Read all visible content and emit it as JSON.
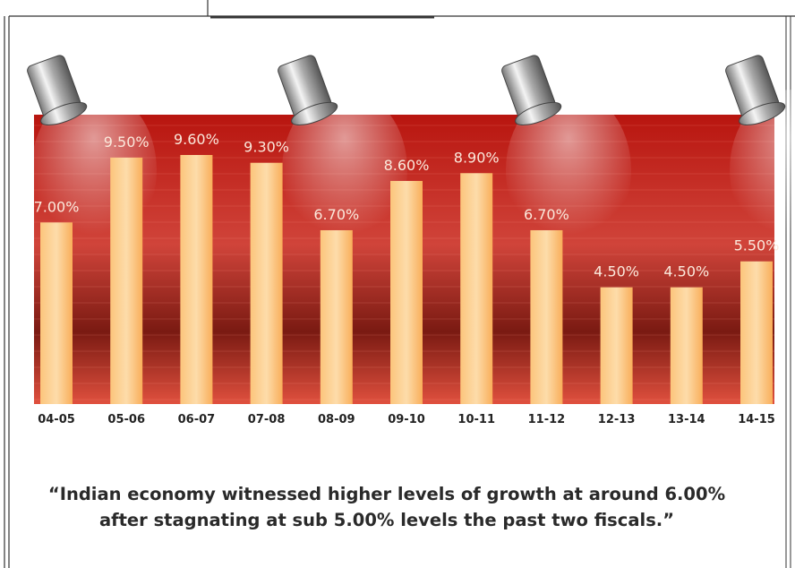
{
  "chart_data": {
    "type": "bar",
    "categories": [
      "04-05",
      "05-06",
      "06-07",
      "07-08",
      "08-09",
      "09-10",
      "10-11",
      "11-12",
      "12-13",
      "13-14",
      "14-15"
    ],
    "values": [
      7.0,
      9.5,
      9.6,
      9.3,
      6.7,
      8.6,
      8.9,
      6.7,
      4.5,
      4.5,
      5.5
    ],
    "value_labels": [
      "7.00%",
      "9.50%",
      "9.60%",
      "9.30%",
      "6.70%",
      "8.60%",
      "8.90%",
      "6.70%",
      "4.50%",
      "4.50%",
      "5.50%"
    ],
    "color": "#fbb260",
    "caption": [
      "“Indian economy witnessed higher levels of growth at around 6.00%",
      "after stagnating at sub 5.00% levels the past two fiscals.”"
    ]
  }
}
